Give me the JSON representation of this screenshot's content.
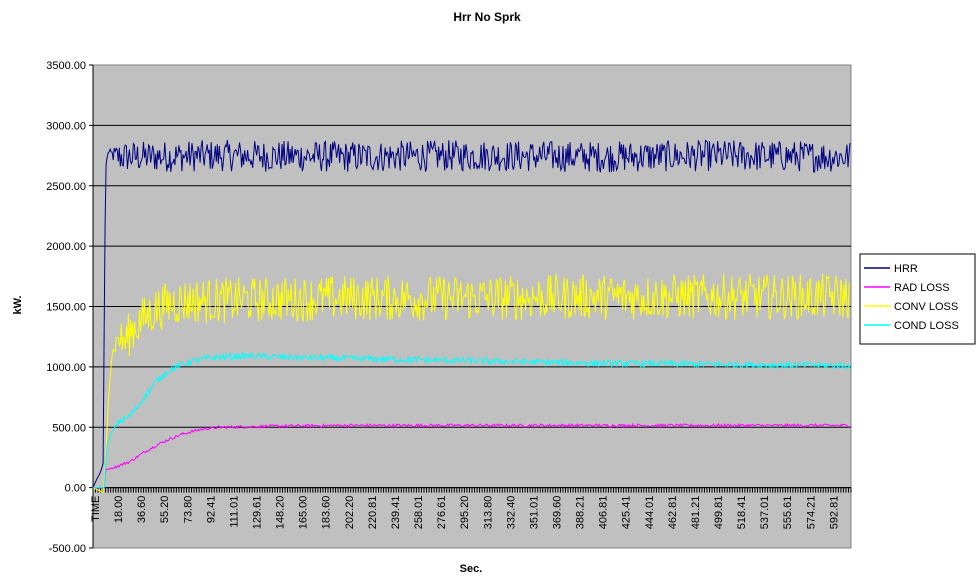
{
  "chart_data": {
    "type": "line",
    "title": "Hrr No Sprk",
    "xlabel": "Sec.",
    "ylabel": "kW.",
    "ylim": [
      -500,
      3500
    ],
    "yticks": [
      "3500.00",
      "3000.00",
      "2500.00",
      "2000.00",
      "1500.00",
      "1000.00",
      "500.00",
      "0.00",
      "-500.00"
    ],
    "ytick_values": [
      3500,
      3000,
      2500,
      2000,
      1500,
      1000,
      500,
      0,
      -500
    ],
    "x_categories": [
      "TIME",
      "18.00",
      "36.60",
      "55.20",
      "73.80",
      "92.41",
      "111.01",
      "129.61",
      "148.20",
      "165.00",
      "183.60",
      "202.20",
      "220.81",
      "239.41",
      "258.01",
      "276.61",
      "295.20",
      "313.80",
      "332.40",
      "351.01",
      "369.60",
      "388.21",
      "406.81",
      "425.41",
      "444.01",
      "462.81",
      "481.21",
      "499.81",
      "518.41",
      "537.01",
      "555.61",
      "574.21",
      "592.81"
    ],
    "xlim": [
      0,
      600
    ],
    "grid": true,
    "plot_background": "#c0c0c0",
    "legend_position": "right",
    "series": [
      {
        "name": "HRR",
        "color": "#000080",
        "x": [
          0,
          3,
          6,
          8,
          9,
          10,
          11,
          12,
          15,
          20,
          40,
          100,
          200,
          300,
          400,
          500,
          600
        ],
        "values": [
          0,
          70,
          130,
          200,
          1500,
          2650,
          2720,
          2780,
          2760,
          2740,
          2740,
          2750,
          2740,
          2750,
          2740,
          2750,
          2740
        ]
      },
      {
        "name": "RAD LOSS",
        "color": "#ff00ff",
        "x": [
          0,
          9,
          10,
          15,
          20,
          30,
          40,
          50,
          60,
          70,
          80,
          90,
          100,
          150,
          200,
          300,
          400,
          500,
          600
        ],
        "values": [
          0,
          0,
          150,
          160,
          180,
          220,
          290,
          350,
          400,
          440,
          470,
          490,
          500,
          510,
          515,
          515,
          515,
          515,
          515
        ]
      },
      {
        "name": "CONV LOSS",
        "color": "#ffff00",
        "x": [
          0,
          8,
          10,
          12,
          15,
          20,
          25,
          30,
          40,
          50,
          60,
          70,
          80,
          100,
          150,
          200,
          300,
          400,
          500,
          600
        ],
        "values": [
          0,
          -40,
          200,
          700,
          1100,
          1250,
          1200,
          1300,
          1400,
          1480,
          1520,
          1540,
          1550,
          1550,
          1560,
          1570,
          1570,
          1580,
          1580,
          1580
        ]
      },
      {
        "name": "COND LOSS",
        "color": "#00ffff",
        "x": [
          0,
          9,
          11,
          15,
          20,
          25,
          30,
          40,
          50,
          60,
          70,
          80,
          90,
          100,
          120,
          150,
          200,
          300,
          400,
          500,
          600
        ],
        "values": [
          0,
          0,
          350,
          460,
          540,
          570,
          600,
          740,
          880,
          970,
          1020,
          1050,
          1070,
          1080,
          1090,
          1080,
          1070,
          1050,
          1030,
          1020,
          1010
        ]
      }
    ]
  }
}
